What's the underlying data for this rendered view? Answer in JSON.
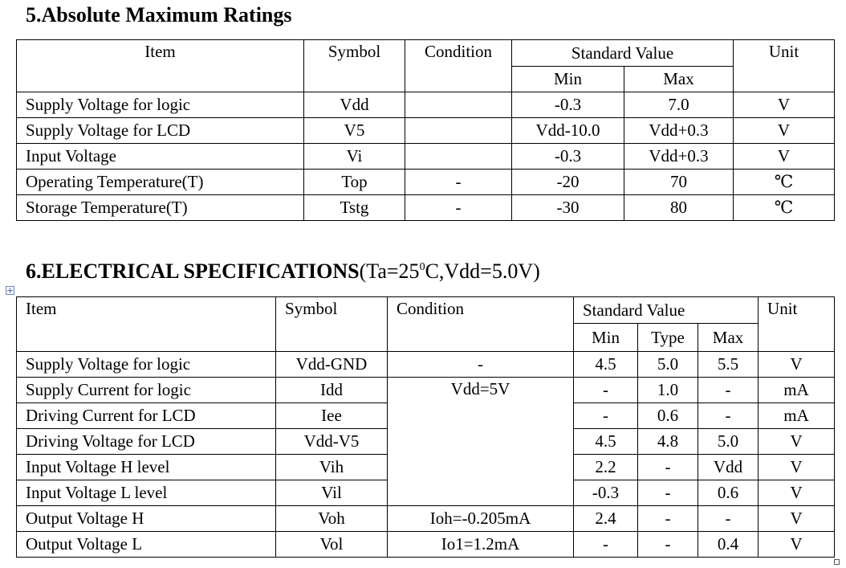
{
  "section5": {
    "heading": "5.Absolute Maximum Ratings",
    "headers": {
      "item": "Item",
      "symbol": "Symbol",
      "condition": "Condition",
      "standard_value": "Standard Value",
      "min": "Min",
      "max": "Max",
      "unit": "Unit"
    },
    "rows": [
      {
        "item": "Supply Voltage for logic",
        "symbol": "Vdd",
        "condition": "",
        "min": "-0.3",
        "max": "7.0",
        "unit": "V"
      },
      {
        "item": "Supply Voltage for LCD",
        "symbol": "V5",
        "condition": "",
        "min": "Vdd-10.0",
        "max": "Vdd+0.3",
        "unit": "V"
      },
      {
        "item": "Input Voltage",
        "symbol": "Vi",
        "condition": "",
        "min": "-0.3",
        "max": "Vdd+0.3",
        "unit": "V"
      },
      {
        "item": "Operating Temperature(T)",
        "symbol": "Top",
        "condition": "-",
        "min": "-20",
        "max": "70",
        "unit": "℃"
      },
      {
        "item": "Storage Temperature(T)",
        "symbol": "Tstg",
        "condition": "-",
        "min": "-30",
        "max": "80",
        "unit": "℃"
      }
    ]
  },
  "section6": {
    "heading": "6.ELECTRICAL SPECIFICATIONS",
    "heading_cond_pre": "(Ta=25",
    "heading_cond_sup": "0",
    "heading_cond_post": "C,Vdd=5.0V)",
    "headers": {
      "item": "Item",
      "symbol": "Symbol",
      "condition": "Condition",
      "standard_value": "Standard Value",
      "min": "Min",
      "type": "Type",
      "max": "Max",
      "unit": "Unit"
    },
    "rows": [
      {
        "item": "Supply Voltage for logic",
        "symbol": "Vdd-GND",
        "condition": "-",
        "min": "4.5",
        "type": "5.0",
        "max": "5.5",
        "unit": "V"
      },
      {
        "item": "Supply Current for logic",
        "symbol": "Idd",
        "condition": "Vdd=5V",
        "min": "-",
        "type": "1.0",
        "max": "-",
        "unit": "mA"
      },
      {
        "item": "Driving Current for LCD",
        "symbol": "Iee",
        "min": "-",
        "type": "0.6",
        "max": "-",
        "unit": "mA"
      },
      {
        "item": "Driving Voltage for LCD",
        "symbol": "Vdd-V5",
        "min": "4.5",
        "type": "4.8",
        "max": "5.0",
        "unit": "V"
      },
      {
        "item": "Input Voltage H level",
        "symbol": "Vih",
        "min": "2.2",
        "type": "-",
        "max": "Vdd",
        "unit": "V"
      },
      {
        "item": "Input Voltage L level",
        "symbol": "Vil",
        "min": "-0.3",
        "type": "-",
        "max": "0.6",
        "unit": "V"
      },
      {
        "item": "Output Voltage H",
        "symbol": "Voh",
        "condition": "Ioh=-0.205mA",
        "min": "2.4",
        "type": "-",
        "max": "-",
        "unit": "V"
      },
      {
        "item": "Output Voltage L",
        "symbol": "Vol",
        "condition": "Io1=1.2mA",
        "min": "-",
        "type": "-",
        "max": "0.4",
        "unit": "V"
      }
    ]
  }
}
